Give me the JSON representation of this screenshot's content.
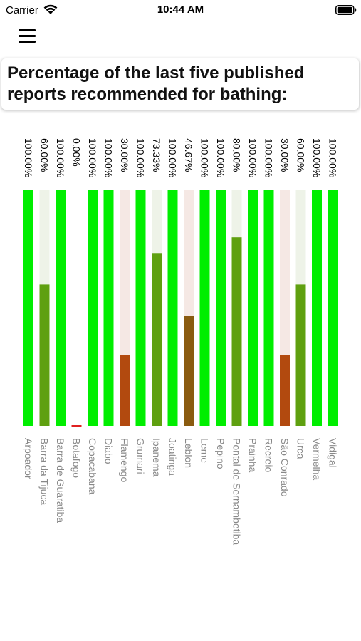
{
  "status_bar": {
    "carrier": "Carrier",
    "time": "10:44 AM"
  },
  "header": {
    "title": "Percentage of the last five published reports recommended for bathing:"
  },
  "colors": {
    "full": "#00ee00",
    "track_green": "#eef3e8",
    "track_red": "#f5e8e4",
    "mid_green": "#5fa010",
    "olive_brown": "#8a5b10",
    "dark_orange": "#b24a0f",
    "red": "#e02020",
    "axis_label": "#888888"
  },
  "chart_data": {
    "type": "bar",
    "orientation": "vertical",
    "ylim": [
      0,
      100
    ],
    "categories": [
      "Arpoador",
      "Barra da Tijuca",
      "Barra de Guaratiba",
      "Botafogo",
      "Copacabana",
      "Diabo",
      "Flamengo",
      "Grumari",
      "Ipanema",
      "Joatinga",
      "Leblon",
      "Leme",
      "Pepino",
      "Pontal de Sernambetiba",
      "Prainha",
      "Recreio",
      "São Conrado",
      "Urca",
      "Vermelha",
      "Vidigal"
    ],
    "values": [
      100,
      60,
      100,
      0,
      100,
      100,
      30,
      100,
      73.33,
      100,
      46.67,
      100,
      100,
      80,
      100,
      100,
      30,
      60,
      100,
      100
    ],
    "value_labels": [
      "100.00%",
      "60.00%",
      "100.00%",
      "0.00%",
      "100.00%",
      "100.00%",
      "30.00%",
      "100.00%",
      "73.33%",
      "100.00%",
      "46.67%",
      "100.00%",
      "100.00%",
      "80.00%",
      "100.00%",
      "100.00%",
      "30.00%",
      "60.00%",
      "100.00%",
      "100.00%"
    ],
    "grid": false,
    "legend": "none"
  }
}
